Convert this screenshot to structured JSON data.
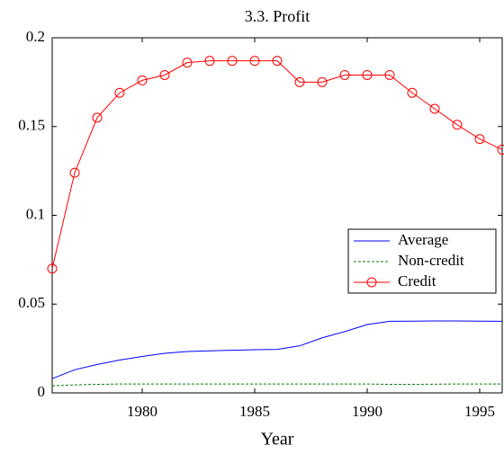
{
  "chart_data": {
    "type": "line",
    "title": "3.3. Profit",
    "x_label": "Year",
    "x": [
      1976,
      1977,
      1978,
      1979,
      1980,
      1981,
      1982,
      1983,
      1984,
      1985,
      1986,
      1987,
      1988,
      1989,
      1990,
      1991,
      1992,
      1993,
      1994,
      1995,
      1996
    ],
    "series": [
      {
        "name": "Average",
        "color": "#0000ff",
        "dash": false,
        "marker": false,
        "values": [
          0.008,
          0.013,
          0.016,
          0.0185,
          0.0205,
          0.0223,
          0.0233,
          0.0237,
          0.024,
          0.0243,
          0.0245,
          0.0265,
          0.031,
          0.0345,
          0.0385,
          0.0403,
          0.0404,
          0.0405,
          0.0405,
          0.0404,
          0.0403
        ]
      },
      {
        "name": "Non-credit",
        "color": "#008000",
        "dash": true,
        "marker": false,
        "values": [
          0.004,
          0.0045,
          0.0048,
          0.005,
          0.005,
          0.005,
          0.005,
          0.005,
          0.005,
          0.005,
          0.005,
          0.005,
          0.005,
          0.005,
          0.005,
          0.0048,
          0.0048,
          0.0049,
          0.005,
          0.005,
          0.005
        ]
      },
      {
        "name": "Credit",
        "color": "#ff0000",
        "dash": false,
        "marker": true,
        "values": [
          0.07,
          0.124,
          0.155,
          0.169,
          0.176,
          0.179,
          0.186,
          0.187,
          0.187,
          0.187,
          0.187,
          0.175,
          0.175,
          0.179,
          0.179,
          0.179,
          0.169,
          0.16,
          0.151,
          0.143,
          0.137
        ]
      }
    ],
    "xlim": [
      1976,
      1996
    ],
    "xticks": [
      1980,
      1985,
      1990,
      1995
    ],
    "ylim": [
      0,
      0.2
    ],
    "yticks": [
      0,
      0.05,
      0.1,
      0.15,
      0.2
    ],
    "legend": "right"
  }
}
